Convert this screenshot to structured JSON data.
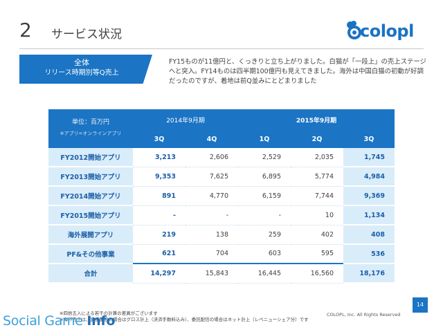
{
  "header": {
    "number": "2",
    "title": "サービス状況"
  },
  "logo": {
    "text": "colopl"
  },
  "summary_box": {
    "line1": "全体",
    "line2": "リリース時期別等Q売上"
  },
  "description": "FY15ものが11億円と、くっきりと立ち上がりました。白猫が「一段上」の売上ステージへと突入。FY14ものは四半期100億円も見えてきました。海外は中国白猫の初動が好調だったのですが、着地は前Q並みにとどまりました",
  "table": {
    "unit": "単位：百万円",
    "unit_note": "※アプリ=オンラインアプリ",
    "year_2014": "2014年9月期",
    "year_2015": "2015年9月期",
    "quarters": [
      "3Q",
      "4Q",
      "1Q",
      "2Q",
      "3Q"
    ],
    "rows": [
      {
        "label": "FY2012開始アプリ",
        "values": [
          "3,213",
          "2,606",
          "2,529",
          "2,035",
          "1,745"
        ]
      },
      {
        "label": "FY2013開始アプリ",
        "values": [
          "9,353",
          "7,625",
          "6,895",
          "5,774",
          "4,984"
        ]
      },
      {
        "label": "FY2014開始アプリ",
        "values": [
          "891",
          "4,770",
          "6,159",
          "7,744",
          "9,369"
        ]
      },
      {
        "label": "FY2015開始アプリ",
        "values": [
          "-",
          "-",
          "-",
          "10",
          "1,134"
        ]
      },
      {
        "label": "海外展開アプリ",
        "values": [
          "219",
          "138",
          "259",
          "402",
          "408"
        ]
      },
      {
        "label": "PF&その他事業",
        "values": [
          "621",
          "704",
          "603",
          "595",
          "536"
        ]
      },
      {
        "label": "合計",
        "values": [
          "14,297",
          "15,843",
          "16,445",
          "16,560",
          "18,176"
        ]
      }
    ]
  },
  "footnotes": {
    "line1": "※四捨五入による若干の計算の差異がございます",
    "line2": "※海外売上は、直接配信の場合はグロス計上（決済手数料込み）、委託配信の場合はネット計上（レベニューシェア分）です"
  },
  "copyright": "COLOPL, Inc. All Rights Reserved",
  "page_number": "14",
  "watermark": {
    "part1": "Social Game ",
    "part2": "Info"
  },
  "colors": {
    "brand_blue": "#1b74c4",
    "light_blue": "#d9ecf9"
  }
}
